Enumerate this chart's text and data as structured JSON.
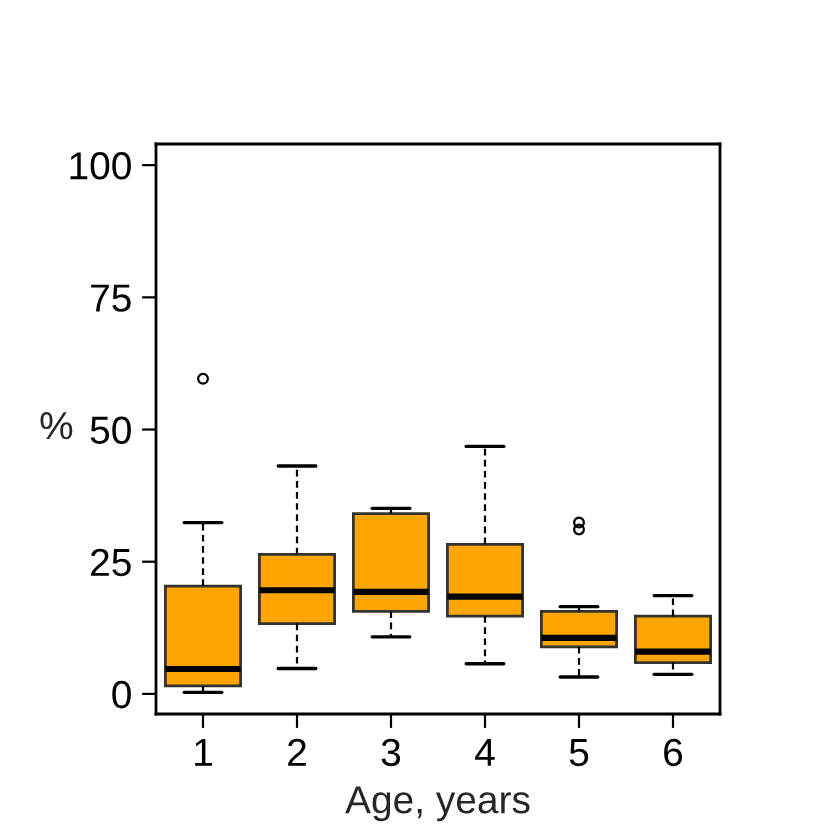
{
  "chart_data": {
    "type": "box",
    "xlabel": "Age, years",
    "ylabel": "%",
    "categories": [
      "1",
      "2",
      "3",
      "4",
      "5",
      "6"
    ],
    "color": "#ffa500",
    "boxes": [
      {
        "low": 0.3,
        "q1": 1.5,
        "median": 4.7,
        "q3": 20.4,
        "high": 32.4,
        "outliers": [
          59.6
        ]
      },
      {
        "low": 4.8,
        "q1": 13.3,
        "median": 19.6,
        "q3": 26.4,
        "high": 43.1
      },
      {
        "low": 10.8,
        "q1": 15.6,
        "median": 19.3,
        "q3": 34.1,
        "high": 35.1
      },
      {
        "low": 5.7,
        "q1": 14.7,
        "median": 18.4,
        "q3": 28.3,
        "high": 46.8
      },
      {
        "low": 3.2,
        "q1": 8.9,
        "median": 10.6,
        "q3": 15.6,
        "high": 16.5,
        "outliers": [
          32.4,
          31.1
        ]
      },
      {
        "low": 3.7,
        "q1": 5.9,
        "median": 8.0,
        "q3": 14.7,
        "high": 18.6
      }
    ],
    "ylim": [
      -3.8,
      104
    ],
    "yticks": [
      0,
      25,
      50,
      75,
      100
    ],
    "grid": false
  }
}
